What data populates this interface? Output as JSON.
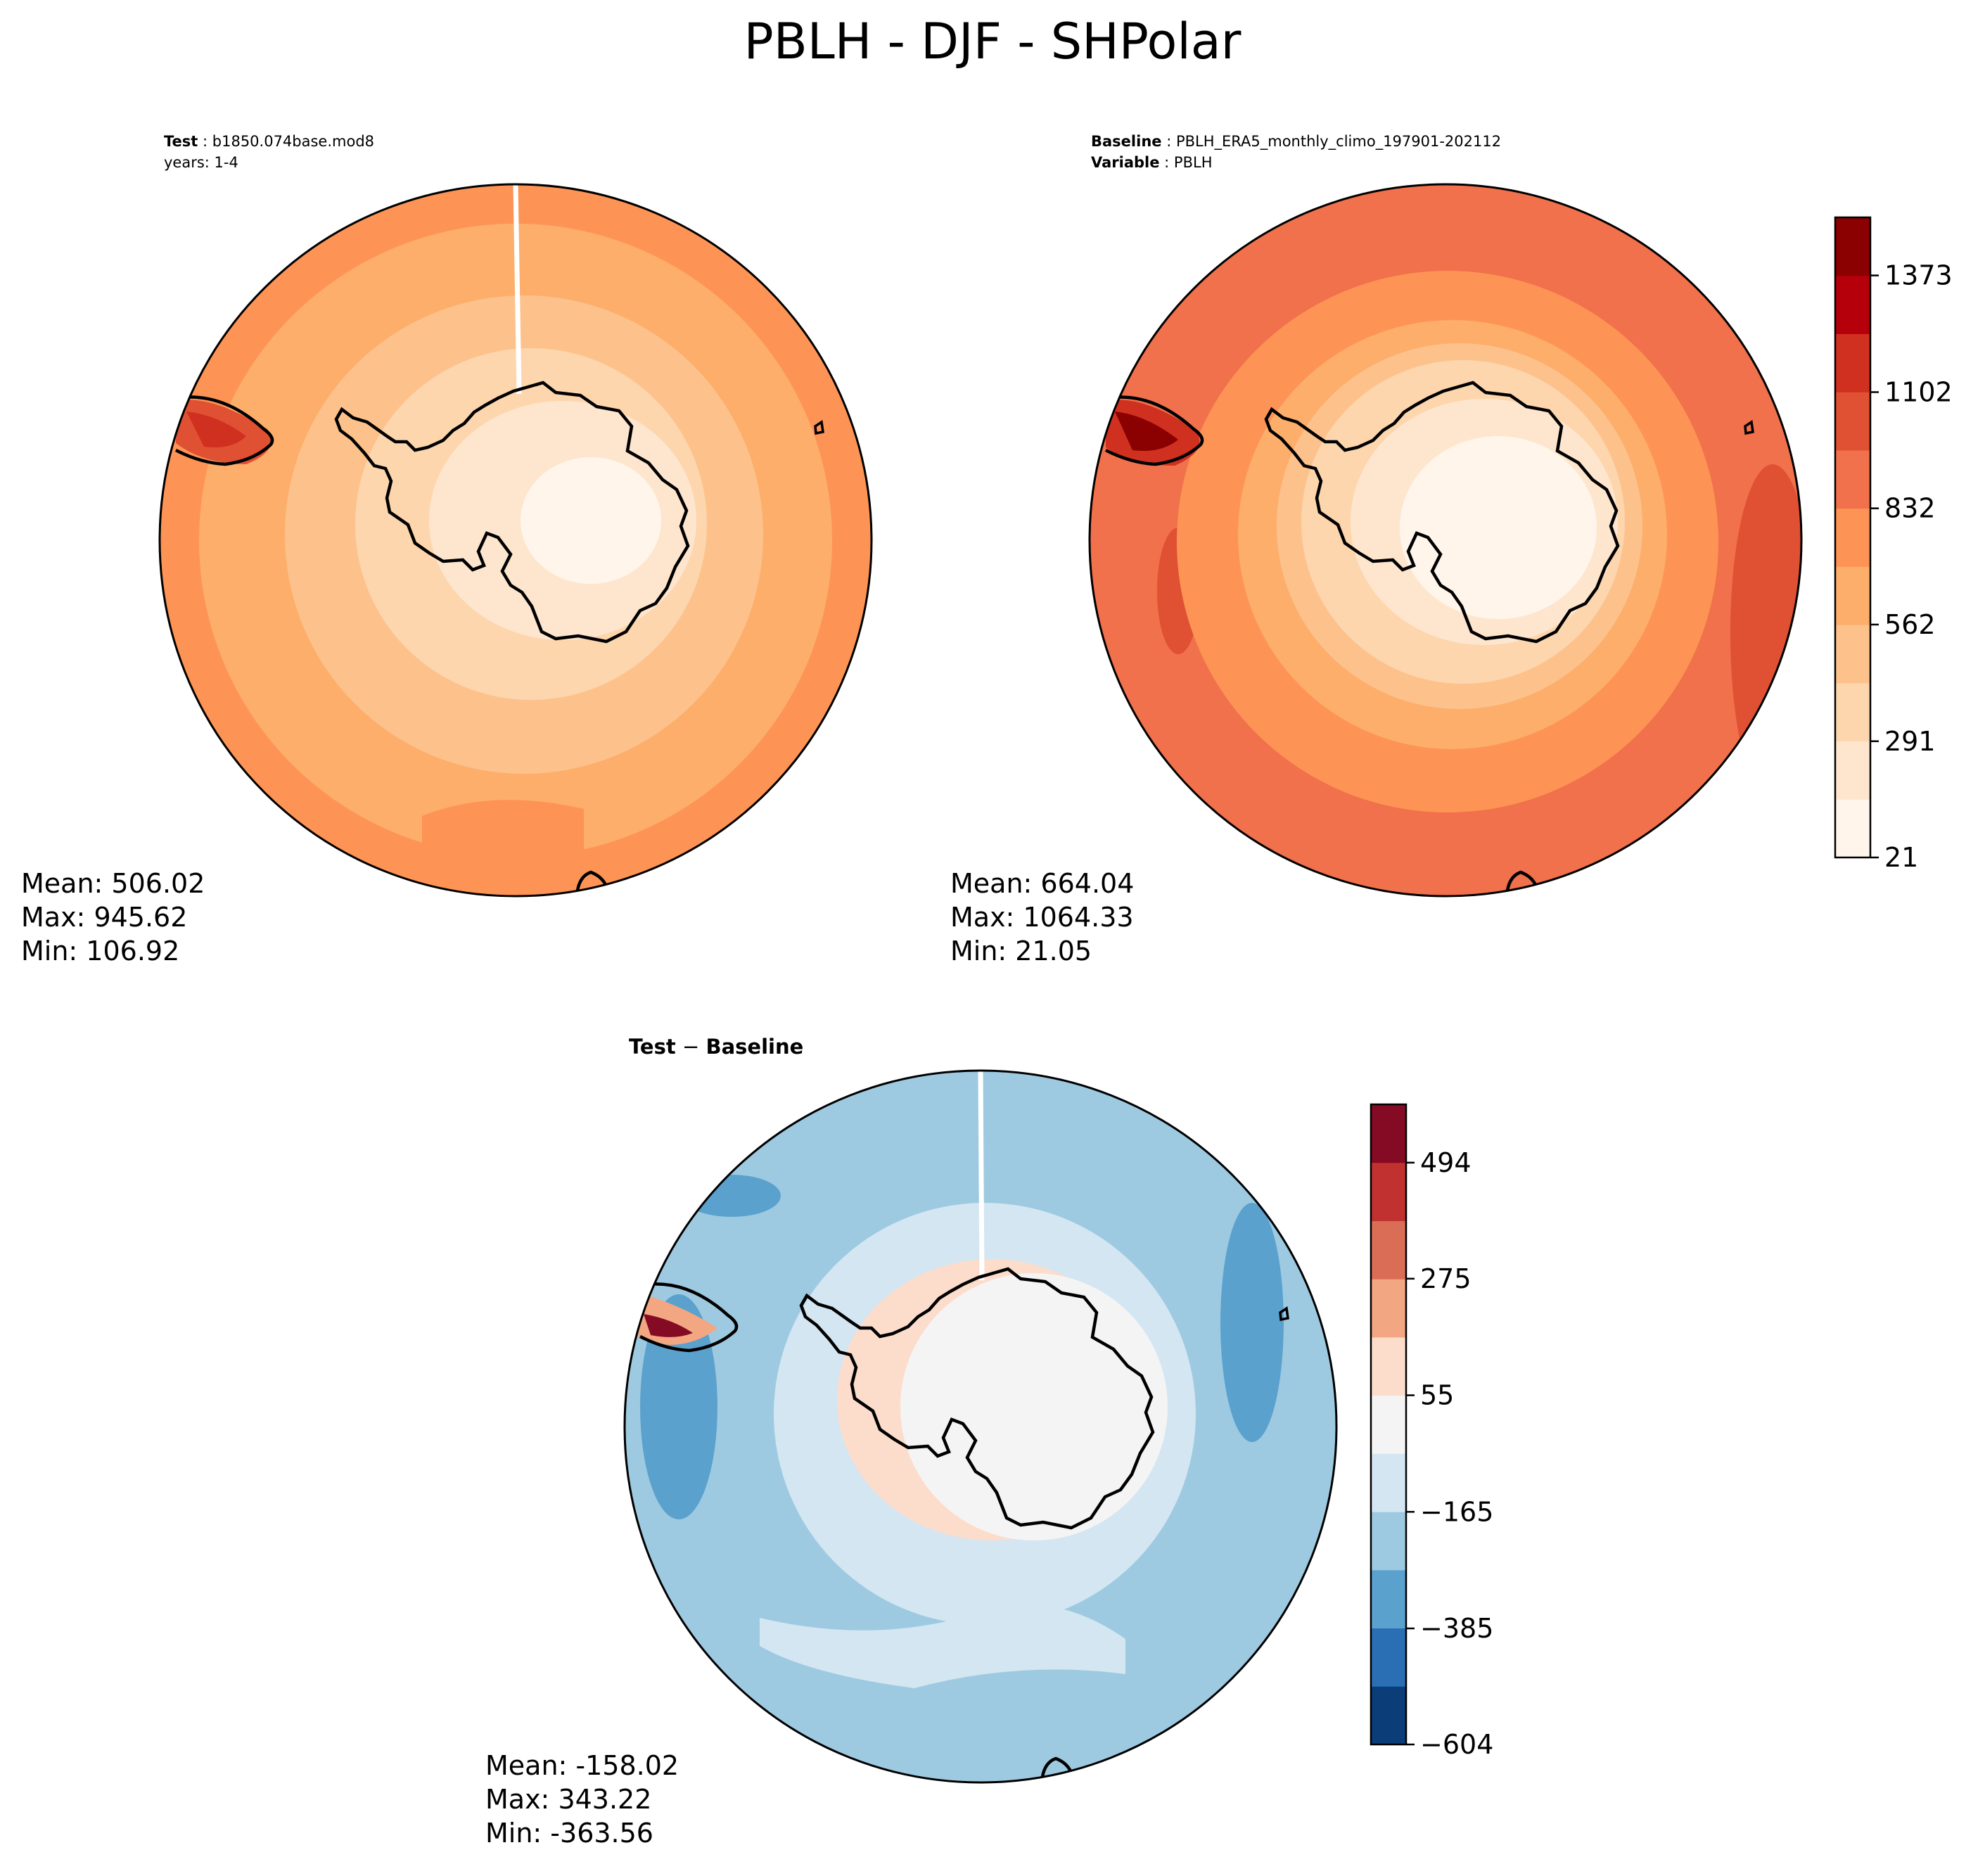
{
  "title": "PBLH - DJF - SHPolar",
  "colors": {
    "oranges": [
      "#fff5eb",
      "#fee6ce",
      "#fdd6ae",
      "#fdc28c",
      "#fdae6b",
      "#fd9455",
      "#f0714b",
      "#e05033",
      "#d0301f",
      "#b5000b",
      "#8b0000"
    ],
    "diverging": [
      "#0b3e79",
      "#2a6fb4",
      "#5ba1ce",
      "#9ecae1",
      "#d3e6f2",
      "#f4f4f4",
      "#fcddcc",
      "#f2a682",
      "#d96d56",
      "#c0312f",
      "#850a24"
    ]
  },
  "panels": {
    "test": {
      "subtitle_label": "Test",
      "subtitle_value": "b1850.074base.mod8",
      "years": "years: 1-4",
      "mean": "Mean: 506.02",
      "max": "Max: 945.62",
      "min": "Min: 106.92"
    },
    "baseline": {
      "subtitle_label": "Baseline",
      "subtitle_value": "PBLH_ERA5_monthly_climo_197901-202112",
      "variable_label": "Variable",
      "variable_value": "PBLH",
      "mean": "Mean: 664.04",
      "max": "Max: 1064.33",
      "min": "Min: 21.05"
    },
    "difference": {
      "label_a": "Test",
      "sep": " − ",
      "label_b": "Baseline",
      "mean": "Mean: -158.02",
      "max": "Max: 343.22",
      "min": "Min: -363.56"
    }
  },
  "chart_data": [
    {
      "type": "heatmap",
      "name": "Test",
      "projection": "south-polar stereographic",
      "variable": "PBLH",
      "season": "DJF",
      "stats": {
        "mean": 506.02,
        "max": 945.62,
        "min": 106.92
      },
      "colorbar_range": [
        21,
        1508
      ]
    },
    {
      "type": "heatmap",
      "name": "Baseline",
      "projection": "south-polar stereographic",
      "variable": "PBLH",
      "season": "DJF",
      "stats": {
        "mean": 664.04,
        "max": 1064.33,
        "min": 21.05
      },
      "colorbar": {
        "min": 21,
        "max": 1508,
        "levels": 11,
        "ticks": [
          21,
          291,
          562,
          832,
          1102,
          1373
        ],
        "tick_labels": [
          "21",
          "291",
          "562",
          "832",
          "1102",
          "1373"
        ]
      }
    },
    {
      "type": "heatmap",
      "name": "Test - Baseline",
      "projection": "south-polar stereographic",
      "stats": {
        "mean": -158.02,
        "max": 343.22,
        "min": -363.56
      },
      "colorbar": {
        "min": -604,
        "max": 604,
        "levels": 11,
        "ticks": [
          -604,
          -385,
          -165,
          55,
          275,
          494
        ],
        "tick_labels": [
          "−604",
          "−385",
          "−165",
          "55",
          "275",
          "494"
        ]
      }
    }
  ]
}
